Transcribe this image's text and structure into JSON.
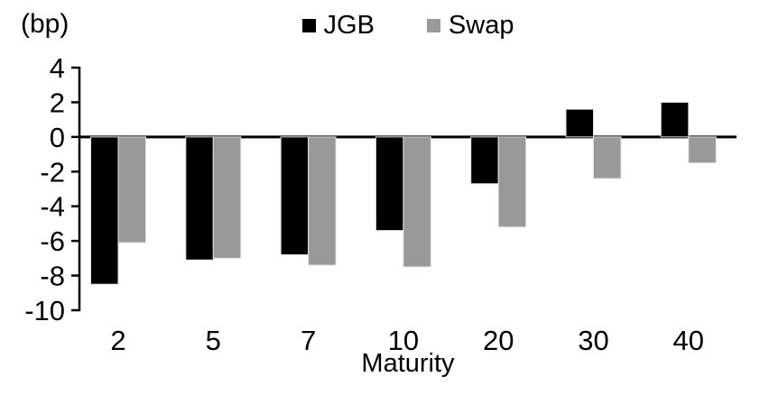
{
  "chart_data": {
    "type": "bar",
    "title": "",
    "unit_label": "(bp)",
    "xlabel": "Maturity",
    "ylabel": "",
    "categories": [
      "2",
      "5",
      "7",
      "10",
      "20",
      "30",
      "40"
    ],
    "series": [
      {
        "name": "JGB",
        "color": "#000000",
        "values": [
          -8.5,
          -7.1,
          -6.8,
          -5.4,
          -2.7,
          1.6,
          2.0
        ]
      },
      {
        "name": "Swap",
        "color": "#999999",
        "values": [
          -6.1,
          -7.0,
          -7.4,
          -7.5,
          -5.2,
          -2.4,
          -1.5
        ]
      }
    ],
    "ylim": [
      -10,
      4
    ],
    "y_ticks": [
      4,
      2,
      0,
      -2,
      -4,
      -6,
      -8,
      -10
    ],
    "legend_position": "top",
    "grid": false,
    "axis_color": "#000000",
    "bar_edge_color": "#e3e3e3"
  }
}
